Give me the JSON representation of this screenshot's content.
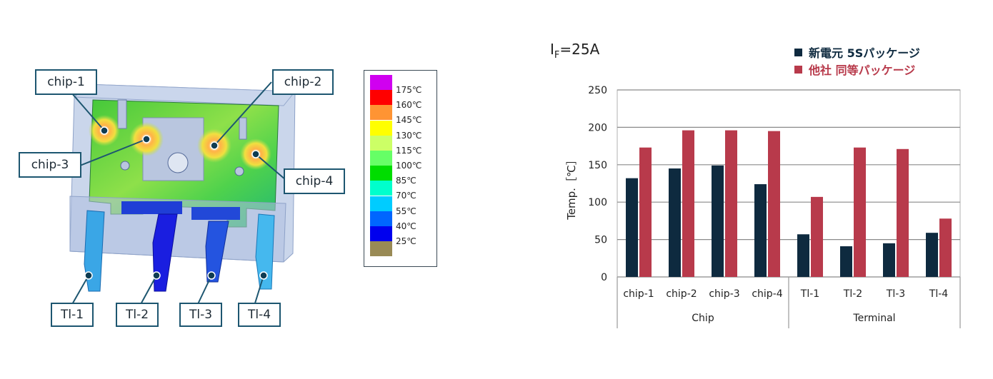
{
  "thermal_image": {
    "callouts": {
      "chip1": "chip-1",
      "chip2": "chip-2",
      "chip3": "chip-3",
      "chip4": "chip-4",
      "tl1": "Tl-1",
      "tl2": "Tl-2",
      "tl3": "Tl-3",
      "tl4": "Tl-4"
    },
    "scale": [
      {
        "label": "175℃",
        "color": "#d000f0"
      },
      {
        "label": "160℃",
        "color": "#ff0000"
      },
      {
        "label": "145℃",
        "color": "#ff9433"
      },
      {
        "label": "130℃",
        "color": "#ffff00"
      },
      {
        "label": "115℃",
        "color": "#ccff66"
      },
      {
        "label": "100℃",
        "color": "#66ff66"
      },
      {
        "label": "85℃",
        "color": "#00dd00"
      },
      {
        "label": "70℃",
        "color": "#00ffcc"
      },
      {
        "label": "55℃",
        "color": "#00ccff"
      },
      {
        "label": "40℃",
        "color": "#0066ff"
      },
      {
        "label": "25℃",
        "color": "#0000ee"
      },
      {
        "label": "",
        "color": "#998a55"
      }
    ]
  },
  "chart_data": {
    "type": "bar",
    "condition_label": "I",
    "condition_sub": "F",
    "condition_value": "=25A",
    "ylabel": "Temp.［℃］",
    "ylim": [
      0,
      250
    ],
    "yticks": [
      "0",
      "50",
      "100",
      "150",
      "200",
      "250"
    ],
    "grid": true,
    "legend_position": "top-right",
    "categories": [
      "chip-1",
      "chip-2",
      "chip-3",
      "chip-4",
      "Tl-1",
      "Tl-2",
      "Tl-3",
      "Tl-4"
    ],
    "groups": [
      {
        "label": "Chip",
        "categories": [
          "chip-1",
          "chip-2",
          "chip-3",
          "chip-4"
        ]
      },
      {
        "label": "Terminal",
        "categories": [
          "Tl-1",
          "Tl-2",
          "Tl-3",
          "Tl-4"
        ]
      }
    ],
    "series": [
      {
        "name": "新電元 5Sパッケージ",
        "color": "#0e2a3f",
        "values": [
          132,
          145,
          149,
          124,
          57,
          41,
          45,
          59
        ]
      },
      {
        "name": "他社 同等パッケージ",
        "color": "#b83a4b",
        "values": [
          173,
          196,
          196,
          195,
          107,
          173,
          171,
          78
        ]
      }
    ]
  }
}
